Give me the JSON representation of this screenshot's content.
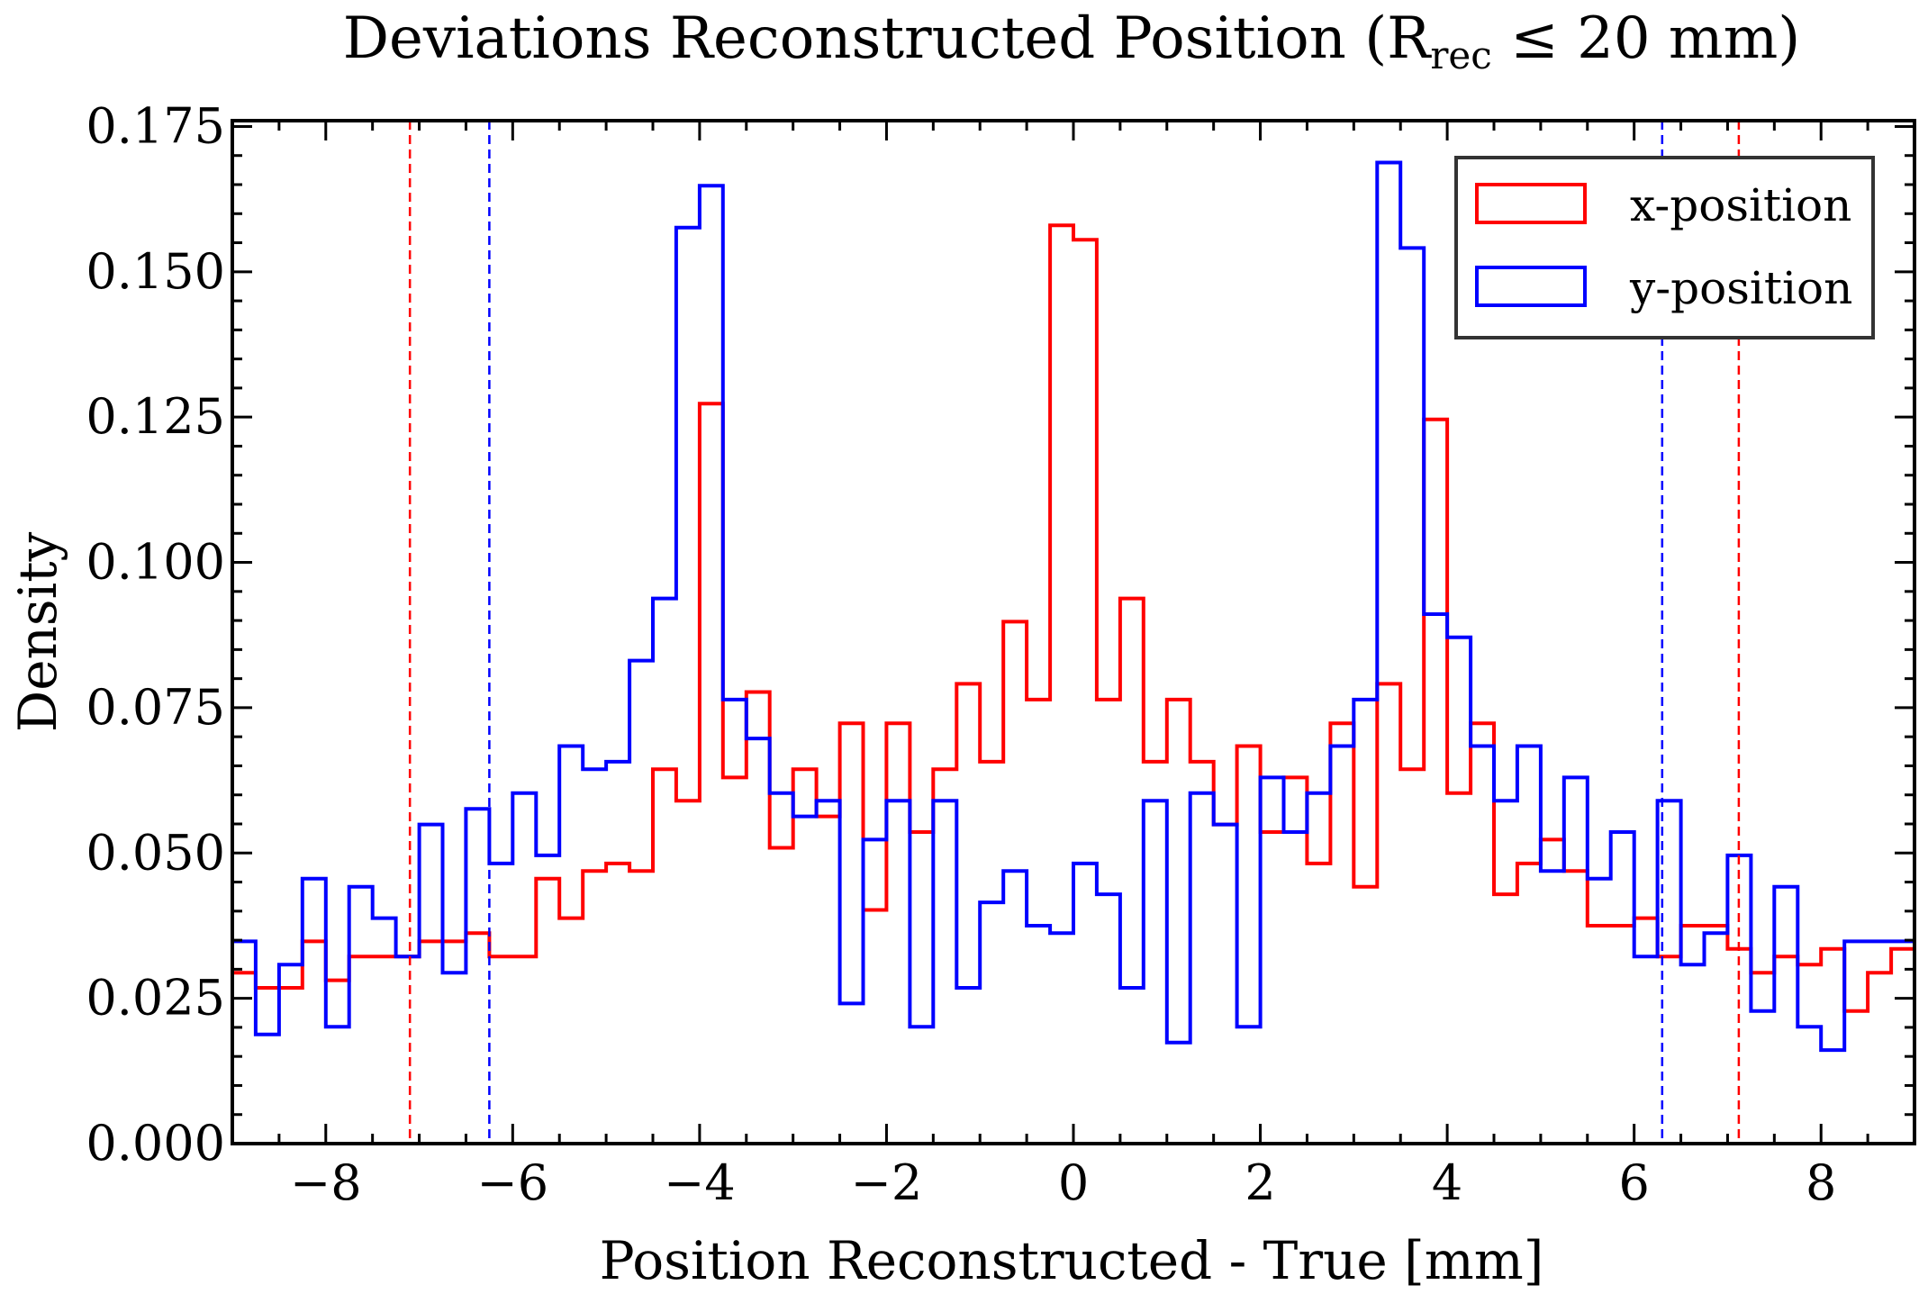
{
  "chart_data": {
    "type": "histogram",
    "title": "Deviations Reconstructed Position (R",
    "title_subscript": "rec",
    "title_suffix": " ≤ 20 mm)",
    "xlabel": "Position Reconstructed - True [mm]",
    "ylabel": "Density",
    "xlim": [
      -9,
      9
    ],
    "ylim": [
      0,
      0.176
    ],
    "x_ticks": [
      -8,
      -6,
      -4,
      -2,
      0,
      2,
      4,
      6,
      8
    ],
    "x_tick_labels": [
      "−8",
      "−6",
      "−4",
      "−2",
      "0",
      "2",
      "4",
      "6",
      "8"
    ],
    "y_ticks": [
      0,
      0.025,
      0.05,
      0.075,
      0.1,
      0.125,
      0.15,
      0.175
    ],
    "y_tick_labels": [
      "0.000",
      "0.025",
      "0.050",
      "0.075",
      "0.100",
      "0.125",
      "0.150",
      "0.175"
    ],
    "grid": false,
    "legend_position": "top-right",
    "bin_start": -9.0,
    "bin_width": 0.25,
    "series": [
      {
        "name": "x-position",
        "color": "#ff0000",
        "values": [
          0.0294,
          0.0268,
          0.0268,
          0.0348,
          0.0281,
          0.0322,
          0.0322,
          0.0322,
          0.0348,
          0.0348,
          0.0362,
          0.0322,
          0.0322,
          0.0456,
          0.0388,
          0.0469,
          0.0482,
          0.0469,
          0.0644,
          0.059,
          0.1273,
          0.063,
          0.0777,
          0.0509,
          0.0644,
          0.0563,
          0.0723,
          0.0402,
          0.0723,
          0.0536,
          0.0644,
          0.0791,
          0.0657,
          0.0898,
          0.0764,
          0.158,
          0.1555,
          0.0764,
          0.0938,
          0.0657,
          0.0764,
          0.0657,
          0.0549,
          0.0684,
          0.0536,
          0.063,
          0.0482,
          0.0723,
          0.0442,
          0.0791,
          0.0644,
          0.1246,
          0.0603,
          0.0723,
          0.0429,
          0.0482,
          0.0523,
          0.0469,
          0.0375,
          0.0375,
          0.0388,
          0.0322,
          0.0375,
          0.0375,
          0.0335,
          0.0294,
          0.0322,
          0.0308,
          0.0335,
          0.0228,
          0.0294,
          0.0335
        ]
      },
      {
        "name": "y-position",
        "color": "#0000ff",
        "values": [
          0.0348,
          0.0188,
          0.0308,
          0.0456,
          0.0201,
          0.0442,
          0.0388,
          0.0322,
          0.0549,
          0.0294,
          0.0576,
          0.0482,
          0.0603,
          0.0496,
          0.0684,
          0.0644,
          0.0657,
          0.0831,
          0.0938,
          0.1576,
          0.1648,
          0.0764,
          0.0697,
          0.0603,
          0.0563,
          0.059,
          0.0241,
          0.0523,
          0.059,
          0.0201,
          0.059,
          0.0268,
          0.0415,
          0.0469,
          0.0375,
          0.0362,
          0.0482,
          0.0429,
          0.0268,
          0.059,
          0.0174,
          0.0603,
          0.0549,
          0.0201,
          0.063,
          0.0536,
          0.0603,
          0.0684,
          0.0764,
          0.1688,
          0.1541,
          0.0911,
          0.0871,
          0.0684,
          0.059,
          0.0684,
          0.0469,
          0.063,
          0.0456,
          0.0536,
          0.0322,
          0.059,
          0.0308,
          0.0362,
          0.0496,
          0.0228,
          0.0442,
          0.0201,
          0.0161,
          0.0348,
          0.0348,
          0.0348
        ]
      }
    ],
    "vertical_lines": [
      {
        "x": -7.1,
        "color": "#ff0000",
        "style": "dashed"
      },
      {
        "x": -6.25,
        "color": "#0000ff",
        "style": "dashed"
      },
      {
        "x": 6.3,
        "color": "#0000ff",
        "style": "dashed"
      },
      {
        "x": 7.12,
        "color": "#ff0000",
        "style": "dashed"
      }
    ]
  }
}
